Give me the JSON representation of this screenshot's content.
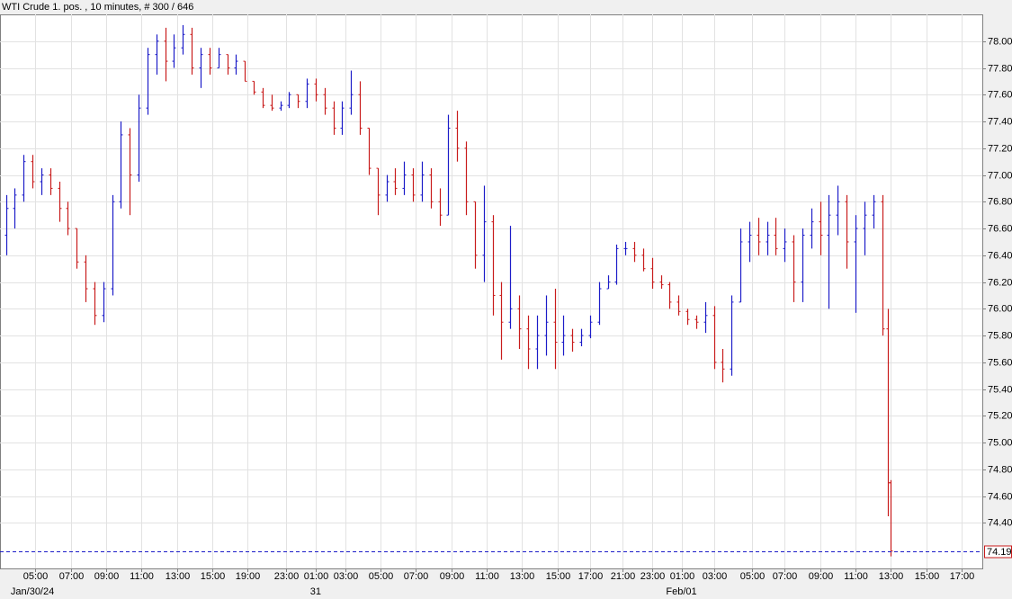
{
  "chart_data": {
    "type": "ohlc",
    "title": "WTI Crude 1. pos. , 10 minutes, # 300 / 646",
    "up_color": "#1c1cc8",
    "down_color": "#c81c1c",
    "grid": true,
    "last_price": 74.19,
    "last_price_color": "#1c1cc8",
    "xlim": [
      0,
      333
    ],
    "ylim": [
      74.06,
      78.2
    ],
    "yticks": [
      {
        "value": 74.4,
        "label": "74.40"
      },
      {
        "value": 74.6,
        "label": "74.60"
      },
      {
        "value": 74.8,
        "label": "74.80"
      },
      {
        "value": 75,
        "label": "75.00"
      },
      {
        "value": 75.2,
        "label": "75.20"
      },
      {
        "value": 75.4,
        "label": "75.40"
      },
      {
        "value": 75.6,
        "label": "75.60"
      },
      {
        "value": 75.8,
        "label": "75.80"
      },
      {
        "value": 76,
        "label": "76.00"
      },
      {
        "value": 76.2,
        "label": "76.20"
      },
      {
        "value": 76.4,
        "label": "76.40"
      },
      {
        "value": 76.6,
        "label": "76.60"
      },
      {
        "value": 76.8,
        "label": "76.80"
      },
      {
        "value": 77,
        "label": "77.00"
      },
      {
        "value": 77.2,
        "label": "77.20"
      },
      {
        "value": 77.4,
        "label": "77.40"
      },
      {
        "value": 77.6,
        "label": "77.60"
      },
      {
        "value": 77.8,
        "label": "77.80"
      },
      {
        "value": 78,
        "label": "78.00"
      }
    ],
    "xticks": [
      {
        "value": 12,
        "label": "05:00"
      },
      {
        "value": 24,
        "label": "07:00"
      },
      {
        "value": 36,
        "label": "09:00"
      },
      {
        "value": 48,
        "label": "11:00"
      },
      {
        "value": 60,
        "label": "13:00"
      },
      {
        "value": 72,
        "label": "15:00"
      },
      {
        "value": 84,
        "label": "19:00"
      },
      {
        "value": 97,
        "label": "23:00"
      },
      {
        "value": 107,
        "label": "01:00"
      },
      {
        "value": 117,
        "label": "03:00"
      },
      {
        "value": 129,
        "label": "05:00"
      },
      {
        "value": 141,
        "label": "07:00"
      },
      {
        "value": 153,
        "label": "09:00"
      },
      {
        "value": 165,
        "label": "11:00"
      },
      {
        "value": 177,
        "label": "13:00"
      },
      {
        "value": 189,
        "label": "15:00"
      },
      {
        "value": 200,
        "label": "17:00"
      },
      {
        "value": 211,
        "label": "21:00"
      },
      {
        "value": 221,
        "label": "23:00"
      },
      {
        "value": 231,
        "label": "01:00"
      },
      {
        "value": 242,
        "label": "03:00"
      },
      {
        "value": 255,
        "label": "05:00"
      },
      {
        "value": 266,
        "label": "07:00"
      },
      {
        "value": 278,
        "label": "09:00"
      },
      {
        "value": 290,
        "label": "11:00"
      },
      {
        "value": 302,
        "label": "13:00"
      },
      {
        "value": 314,
        "label": "15:00"
      },
      {
        "value": 326,
        "label": "17:00"
      }
    ],
    "date_labels": [
      {
        "value": 11,
        "label": "Jan/30/24"
      },
      {
        "value": 107,
        "label": "31"
      },
      {
        "value": 231,
        "label": "Feb/01"
      }
    ],
    "x": [
      2,
      5,
      8,
      11,
      14,
      17,
      20,
      23,
      26,
      29,
      32,
      35,
      38,
      41,
      44,
      47,
      50,
      53,
      56,
      59,
      62,
      65,
      68,
      71,
      74,
      77,
      80,
      83,
      86,
      89,
      92,
      95,
      98,
      101,
      104,
      107,
      110,
      113,
      116,
      119,
      122,
      125,
      128,
      131,
      134,
      137,
      140,
      143,
      146,
      149,
      152,
      155,
      158,
      161,
      164,
      167,
      170,
      173,
      176,
      179,
      182,
      185,
      188,
      191,
      194,
      197,
      200,
      203,
      206,
      209,
      212,
      215,
      218,
      221,
      224,
      227,
      230,
      233,
      236,
      239,
      242,
      245,
      248,
      251,
      254,
      257,
      260,
      263,
      266,
      269,
      272,
      275,
      278,
      281,
      284,
      287,
      290,
      293,
      296,
      299,
      301,
      302
    ],
    "open": [
      76.55,
      76.75,
      76.85,
      77.1,
      76.95,
      77.0,
      76.9,
      76.75,
      76.6,
      76.35,
      76.15,
      75.95,
      76.15,
      76.8,
      77.3,
      77.0,
      77.5,
      77.9,
      78.0,
      77.85,
      77.95,
      78.05,
      77.8,
      77.9,
      77.8,
      77.9,
      77.8,
      77.85,
      77.7,
      77.62,
      77.52,
      77.5,
      77.52,
      77.6,
      77.55,
      77.68,
      77.6,
      77.5,
      77.35,
      77.5,
      77.6,
      77.35,
      77.05,
      76.85,
      76.95,
      76.9,
      77.0,
      76.85,
      77.0,
      76.8,
      76.7,
      77.35,
      77.2,
      76.8,
      76.4,
      76.65,
      76.1,
      75.9,
      76.0,
      75.85,
      75.7,
      75.8,
      75.9,
      75.75,
      75.8,
      75.75,
      75.8,
      75.9,
      76.15,
      76.2,
      76.45,
      76.45,
      76.4,
      76.3,
      76.2,
      76.18,
      76.05,
      75.98,
      75.92,
      75.9,
      75.95,
      75.6,
      75.55,
      76.05,
      76.5,
      76.55,
      76.5,
      76.55,
      76.45,
      76.5,
      76.2,
      76.55,
      76.65,
      76.55,
      76.7,
      76.8,
      76.5,
      76.6,
      76.7,
      76.8,
      75.85,
      74.7
    ],
    "high": [
      76.85,
      76.9,
      77.15,
      77.15,
      77.05,
      77.05,
      76.95,
      76.8,
      76.6,
      76.4,
      76.2,
      76.2,
      76.85,
      77.4,
      77.35,
      77.6,
      77.95,
      78.05,
      78.1,
      78.05,
      78.12,
      78.1,
      77.95,
      77.95,
      77.95,
      77.9,
      77.9,
      77.85,
      77.7,
      77.65,
      77.6,
      77.55,
      77.62,
      77.6,
      77.72,
      77.72,
      77.65,
      77.55,
      77.55,
      77.78,
      77.7,
      77.35,
      77.05,
      77.0,
      77.05,
      77.1,
      77.05,
      77.1,
      77.05,
      76.9,
      77.45,
      77.48,
      77.25,
      76.8,
      76.92,
      76.7,
      76.2,
      76.62,
      76.1,
      75.95,
      75.95,
      76.1,
      76.15,
      75.95,
      75.85,
      75.85,
      75.95,
      76.2,
      76.25,
      76.48,
      76.5,
      76.5,
      76.45,
      76.38,
      76.25,
      76.2,
      76.1,
      76.0,
      75.95,
      76.05,
      76.02,
      75.7,
      76.1,
      76.6,
      76.65,
      76.68,
      76.65,
      76.68,
      76.6,
      76.55,
      76.6,
      76.75,
      76.8,
      76.85,
      76.92,
      76.85,
      76.7,
      76.8,
      76.85,
      76.85,
      76.0,
      74.72
    ],
    "low": [
      76.4,
      76.6,
      76.8,
      76.9,
      76.85,
      76.85,
      76.65,
      76.55,
      76.3,
      76.05,
      75.88,
      75.9,
      76.1,
      76.75,
      76.7,
      76.95,
      77.45,
      77.75,
      77.7,
      77.8,
      77.9,
      77.75,
      77.65,
      77.75,
      77.8,
      77.75,
      77.75,
      77.7,
      77.6,
      77.5,
      77.48,
      77.48,
      77.5,
      77.5,
      77.5,
      77.55,
      77.45,
      77.3,
      77.3,
      77.45,
      77.3,
      77.0,
      76.7,
      76.8,
      76.85,
      76.85,
      76.8,
      76.8,
      76.75,
      76.62,
      76.7,
      77.1,
      76.7,
      76.3,
      76.2,
      75.95,
      75.62,
      75.85,
      75.7,
      75.55,
      75.55,
      75.65,
      75.55,
      75.65,
      75.68,
      75.72,
      75.78,
      75.88,
      76.15,
      76.18,
      76.4,
      76.35,
      76.28,
      76.15,
      76.15,
      76.0,
      75.95,
      75.88,
      75.85,
      75.82,
      75.55,
      75.45,
      75.5,
      76.05,
      76.35,
      76.4,
      76.4,
      76.4,
      76.35,
      76.05,
      76.05,
      76.45,
      76.4,
      76.0,
      76.55,
      76.3,
      75.97,
      76.4,
      76.6,
      75.8,
      74.45,
      74.15
    ],
    "close": [
      76.75,
      76.85,
      77.1,
      76.95,
      77.0,
      76.9,
      76.75,
      76.6,
      76.35,
      76.15,
      75.95,
      76.15,
      76.8,
      77.3,
      77.0,
      77.5,
      77.9,
      78.0,
      77.85,
      77.95,
      78.05,
      77.8,
      77.9,
      77.8,
      77.9,
      77.8,
      77.85,
      77.7,
      77.62,
      77.52,
      77.5,
      77.52,
      77.6,
      77.55,
      77.68,
      77.6,
      77.5,
      77.35,
      77.5,
      77.6,
      77.35,
      77.05,
      76.85,
      76.95,
      76.9,
      77.0,
      76.85,
      77.0,
      76.8,
      76.7,
      77.35,
      77.2,
      76.8,
      76.4,
      76.65,
      76.1,
      75.9,
      76.0,
      75.85,
      75.7,
      75.8,
      75.9,
      75.75,
      75.8,
      75.75,
      75.8,
      75.9,
      76.15,
      76.2,
      76.45,
      76.45,
      76.4,
      76.3,
      76.2,
      76.18,
      76.05,
      75.98,
      75.92,
      75.9,
      75.95,
      75.6,
      75.55,
      76.05,
      76.5,
      76.55,
      76.5,
      76.55,
      76.45,
      76.5,
      76.2,
      76.55,
      76.65,
      76.55,
      76.7,
      76.8,
      76.5,
      76.6,
      76.7,
      76.8,
      75.85,
      74.7,
      74.19
    ]
  }
}
